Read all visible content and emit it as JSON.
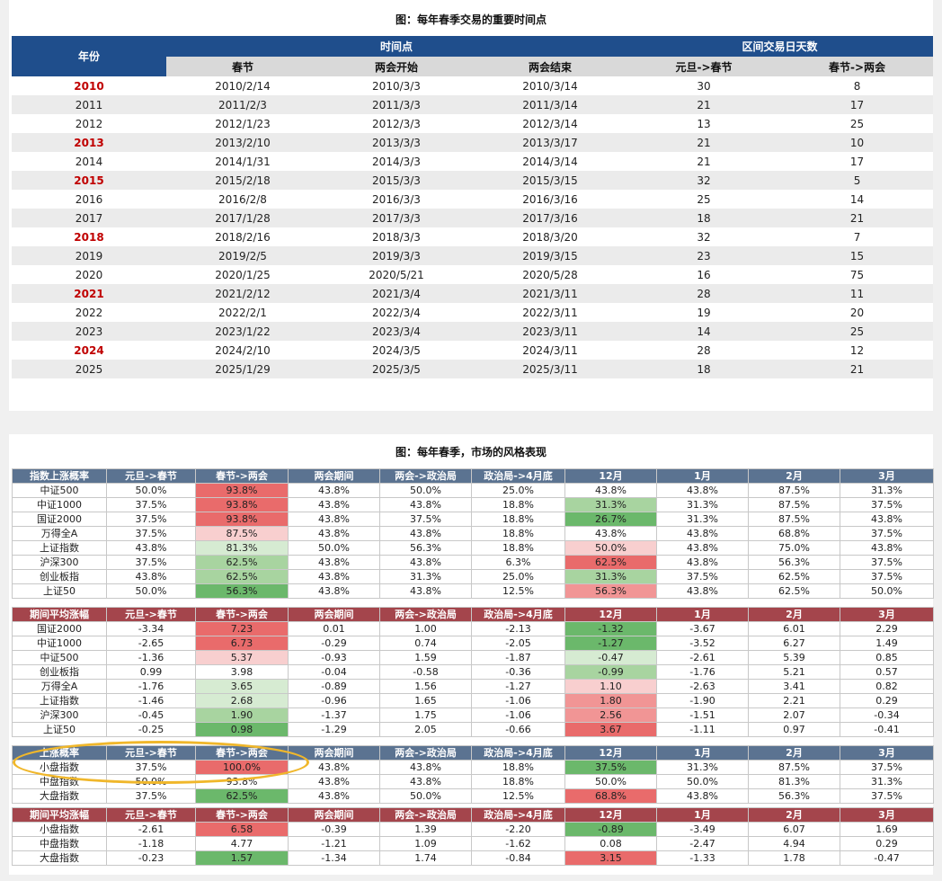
{
  "top": {
    "title": "图：每年春季交易的重要时间点",
    "header": {
      "year": "年份",
      "group1": "时间点",
      "group2": "区间交易日天数",
      "cols": [
        "春节",
        "两会开始",
        "两会结束",
        "元旦->春节",
        "春节->两会"
      ]
    },
    "rows": [
      {
        "year": "2010",
        "red": true,
        "cells": [
          "2010/2/14",
          "2010/3/3",
          "2010/3/14",
          "30",
          "8"
        ]
      },
      {
        "year": "2011",
        "red": false,
        "cells": [
          "2011/2/3",
          "2011/3/3",
          "2011/3/14",
          "21",
          "17"
        ]
      },
      {
        "year": "2012",
        "red": false,
        "cells": [
          "2012/1/23",
          "2012/3/3",
          "2012/3/14",
          "13",
          "25"
        ]
      },
      {
        "year": "2013",
        "red": true,
        "cells": [
          "2013/2/10",
          "2013/3/3",
          "2013/3/17",
          "21",
          "10"
        ]
      },
      {
        "year": "2014",
        "red": false,
        "cells": [
          "2014/1/31",
          "2014/3/3",
          "2014/3/14",
          "21",
          "17"
        ]
      },
      {
        "year": "2015",
        "red": true,
        "cells": [
          "2015/2/18",
          "2015/3/3",
          "2015/3/15",
          "32",
          "5"
        ]
      },
      {
        "year": "2016",
        "red": false,
        "cells": [
          "2016/2/8",
          "2016/3/3",
          "2016/3/16",
          "25",
          "14"
        ]
      },
      {
        "year": "2017",
        "red": false,
        "cells": [
          "2017/1/28",
          "2017/3/3",
          "2017/3/16",
          "18",
          "21"
        ]
      },
      {
        "year": "2018",
        "red": true,
        "cells": [
          "2018/2/16",
          "2018/3/3",
          "2018/3/20",
          "32",
          "7"
        ]
      },
      {
        "year": "2019",
        "red": false,
        "cells": [
          "2019/2/5",
          "2019/3/3",
          "2019/3/15",
          "23",
          "15"
        ]
      },
      {
        "year": "2020",
        "red": false,
        "cells": [
          "2020/1/25",
          "2020/5/21",
          "2020/5/28",
          "16",
          "75"
        ]
      },
      {
        "year": "2021",
        "red": true,
        "cells": [
          "2021/2/12",
          "2021/3/4",
          "2021/3/11",
          "28",
          "11"
        ]
      },
      {
        "year": "2022",
        "red": false,
        "cells": [
          "2022/2/1",
          "2022/3/4",
          "2022/3/11",
          "19",
          "20"
        ]
      },
      {
        "year": "2023",
        "red": false,
        "cells": [
          "2023/1/22",
          "2023/3/4",
          "2023/3/11",
          "14",
          "25"
        ]
      },
      {
        "year": "2024",
        "red": true,
        "cells": [
          "2024/2/10",
          "2024/3/5",
          "2024/3/11",
          "28",
          "12"
        ]
      },
      {
        "year": "2025",
        "red": false,
        "cells": [
          "2025/1/29",
          "2025/3/5",
          "2025/3/11",
          "18",
          "21"
        ]
      }
    ]
  },
  "bottom": {
    "title": "图：每年春季，市场的风格表现",
    "colors": {
      "blue_header": "#5b7391",
      "red_header": "#a4454c",
      "red1": "#e96b6b",
      "red2": "#f19595",
      "red3": "#f8cfcf",
      "green1": "#6bb86b",
      "green2": "#a8d4a0",
      "green3": "#d6ebd2",
      "white": "#ffffff",
      "ellipse": "#f0b72b"
    },
    "groups": [
      {
        "theme": "blue",
        "headers": [
          "指数上涨概率",
          "元旦->春节",
          "春节->两会",
          "两会期间",
          "两会->政治局",
          "政治局->4月底",
          "12月",
          "1月",
          "2月",
          "3月"
        ],
        "rows": [
          {
            "cells": [
              "中证500",
              "50.0%",
              "93.8%",
              "43.8%",
              "50.0%",
              "25.0%",
              "43.8%",
              "43.8%",
              "87.5%",
              "31.3%"
            ],
            "colors": [
              "",
              "",
              "red1",
              "",
              "",
              "",
              "",
              "",
              "",
              ""
            ]
          },
          {
            "cells": [
              "中证1000",
              "37.5%",
              "93.8%",
              "43.8%",
              "43.8%",
              "18.8%",
              "31.3%",
              "31.3%",
              "87.5%",
              "37.5%"
            ],
            "colors": [
              "",
              "",
              "red1",
              "",
              "",
              "",
              "green2",
              "",
              "",
              ""
            ]
          },
          {
            "cells": [
              "国证2000",
              "37.5%",
              "93.8%",
              "43.8%",
              "37.5%",
              "18.8%",
              "26.7%",
              "31.3%",
              "87.5%",
              "43.8%"
            ],
            "colors": [
              "",
              "",
              "red1",
              "",
              "",
              "",
              "green1",
              "",
              "",
              ""
            ]
          },
          {
            "cells": [
              "万得全A",
              "37.5%",
              "87.5%",
              "43.8%",
              "43.8%",
              "18.8%",
              "43.8%",
              "43.8%",
              "68.8%",
              "37.5%"
            ],
            "colors": [
              "",
              "",
              "red3",
              "",
              "",
              "",
              "",
              "",
              "",
              ""
            ]
          },
          {
            "cells": [
              "上证指数",
              "43.8%",
              "81.3%",
              "50.0%",
              "56.3%",
              "18.8%",
              "50.0%",
              "43.8%",
              "75.0%",
              "43.8%"
            ],
            "colors": [
              "",
              "",
              "green3",
              "",
              "",
              "",
              "red3",
              "",
              "",
              ""
            ]
          },
          {
            "cells": [
              "沪深300",
              "37.5%",
              "62.5%",
              "43.8%",
              "43.8%",
              "6.3%",
              "62.5%",
              "43.8%",
              "56.3%",
              "37.5%"
            ],
            "colors": [
              "",
              "",
              "green2",
              "",
              "",
              "",
              "red1",
              "",
              "",
              ""
            ]
          },
          {
            "cells": [
              "创业板指",
              "43.8%",
              "62.5%",
              "43.8%",
              "31.3%",
              "25.0%",
              "31.3%",
              "37.5%",
              "62.5%",
              "37.5%"
            ],
            "colors": [
              "",
              "",
              "green2",
              "",
              "",
              "",
              "green2",
              "",
              "",
              ""
            ]
          },
          {
            "cells": [
              "上证50",
              "50.0%",
              "56.3%",
              "43.8%",
              "43.8%",
              "12.5%",
              "56.3%",
              "43.8%",
              "62.5%",
              "50.0%"
            ],
            "colors": [
              "",
              "",
              "green1",
              "",
              "",
              "",
              "red2",
              "",
              "",
              ""
            ]
          }
        ]
      },
      {
        "theme": "red",
        "headers": [
          "期间平均涨幅",
          "元旦->春节",
          "春节->两会",
          "两会期间",
          "两会->政治局",
          "政治局->4月底",
          "12月",
          "1月",
          "2月",
          "3月"
        ],
        "rows": [
          {
            "cells": [
              "国证2000",
              "-3.34",
              "7.23",
              "0.01",
              "1.00",
              "-2.13",
              "-1.32",
              "-3.67",
              "6.01",
              "2.29"
            ],
            "colors": [
              "",
              "",
              "red1",
              "",
              "",
              "",
              "green1",
              "",
              "",
              ""
            ]
          },
          {
            "cells": [
              "中证1000",
              "-2.65",
              "6.73",
              "-0.29",
              "0.74",
              "-2.05",
              "-1.27",
              "-3.52",
              "6.27",
              "1.49"
            ],
            "colors": [
              "",
              "",
              "red1",
              "",
              "",
              "",
              "green1",
              "",
              "",
              ""
            ]
          },
          {
            "cells": [
              "中证500",
              "-1.36",
              "5.37",
              "-0.93",
              "1.59",
              "-1.87",
              "-0.47",
              "-2.61",
              "5.39",
              "0.85"
            ],
            "colors": [
              "",
              "",
              "red3",
              "",
              "",
              "",
              "green3",
              "",
              "",
              ""
            ]
          },
          {
            "cells": [
              "创业板指",
              "0.99",
              "3.98",
              "-0.04",
              "-0.58",
              "-0.36",
              "-0.99",
              "-1.76",
              "5.21",
              "0.57"
            ],
            "colors": [
              "",
              "",
              "white",
              "",
              "",
              "",
              "green2",
              "",
              "",
              ""
            ]
          },
          {
            "cells": [
              "万得全A",
              "-1.76",
              "3.65",
              "-0.89",
              "1.56",
              "-1.27",
              "1.10",
              "-2.63",
              "3.41",
              "0.82"
            ],
            "colors": [
              "",
              "",
              "green3",
              "",
              "",
              "",
              "red3",
              "",
              "",
              ""
            ]
          },
          {
            "cells": [
              "上证指数",
              "-1.46",
              "2.68",
              "-0.96",
              "1.65",
              "-1.06",
              "1.80",
              "-1.90",
              "2.21",
              "0.29"
            ],
            "colors": [
              "",
              "",
              "green3",
              "",
              "",
              "",
              "red2",
              "",
              "",
              ""
            ]
          },
          {
            "cells": [
              "沪深300",
              "-0.45",
              "1.90",
              "-1.37",
              "1.75",
              "-1.06",
              "2.56",
              "-1.51",
              "2.07",
              "-0.34"
            ],
            "colors": [
              "",
              "",
              "green2",
              "",
              "",
              "",
              "red2",
              "",
              "",
              ""
            ]
          },
          {
            "cells": [
              "上证50",
              "-0.25",
              "0.98",
              "-1.29",
              "2.05",
              "-0.66",
              "3.67",
              "-1.11",
              "0.97",
              "-0.41"
            ],
            "colors": [
              "",
              "",
              "green1",
              "",
              "",
              "",
              "red1",
              "",
              "",
              ""
            ]
          }
        ]
      },
      {
        "theme": "blue",
        "headers": [
          "上涨概率",
          "元旦->春节",
          "春节->两会",
          "两会期间",
          "两会->政治局",
          "政治局->4月底",
          "12月",
          "1月",
          "2月",
          "3月"
        ],
        "rows": [
          {
            "cells": [
              "小盘指数",
              "37.5%",
              "100.0%",
              "43.8%",
              "43.8%",
              "18.8%",
              "37.5%",
              "31.3%",
              "87.5%",
              "37.5%"
            ],
            "colors": [
              "",
              "",
              "red1",
              "",
              "",
              "",
              "green1",
              "",
              "",
              ""
            ]
          },
          {
            "cells": [
              "中盘指数",
              "50.0%",
              "93.8%",
              "43.8%",
              "43.8%",
              "18.8%",
              "50.0%",
              "50.0%",
              "81.3%",
              "31.3%"
            ],
            "colors": [
              "",
              "",
              "",
              "",
              "",
              "",
              "",
              "",
              "",
              ""
            ]
          },
          {
            "cells": [
              "大盘指数",
              "37.5%",
              "62.5%",
              "43.8%",
              "50.0%",
              "12.5%",
              "68.8%",
              "43.8%",
              "56.3%",
              "37.5%"
            ],
            "colors": [
              "",
              "",
              "green1",
              "",
              "",
              "",
              "red1",
              "",
              "",
              ""
            ]
          }
        ]
      },
      {
        "theme": "red",
        "headers": [
          "期间平均涨幅",
          "元旦->春节",
          "春节->两会",
          "两会期间",
          "两会->政治局",
          "政治局->4月底",
          "12月",
          "1月",
          "2月",
          "3月"
        ],
        "rows": [
          {
            "cells": [
              "小盘指数",
              "-2.61",
              "6.58",
              "-0.39",
              "1.39",
              "-2.20",
              "-0.89",
              "-3.49",
              "6.07",
              "1.69"
            ],
            "colors": [
              "",
              "",
              "red1",
              "",
              "",
              "",
              "green1",
              "",
              "",
              ""
            ]
          },
          {
            "cells": [
              "中盘指数",
              "-1.18",
              "4.77",
              "-1.21",
              "1.09",
              "-1.62",
              "0.08",
              "-2.47",
              "4.94",
              "0.29"
            ],
            "colors": [
              "",
              "",
              "white",
              "",
              "",
              "",
              "white",
              "",
              "",
              ""
            ]
          },
          {
            "cells": [
              "大盘指数",
              "-0.23",
              "1.57",
              "-1.34",
              "1.74",
              "-0.84",
              "3.15",
              "-1.33",
              "1.78",
              "-0.47"
            ],
            "colors": [
              "",
              "",
              "green1",
              "",
              "",
              "",
              "red1",
              "",
              "",
              ""
            ]
          }
        ]
      }
    ]
  }
}
